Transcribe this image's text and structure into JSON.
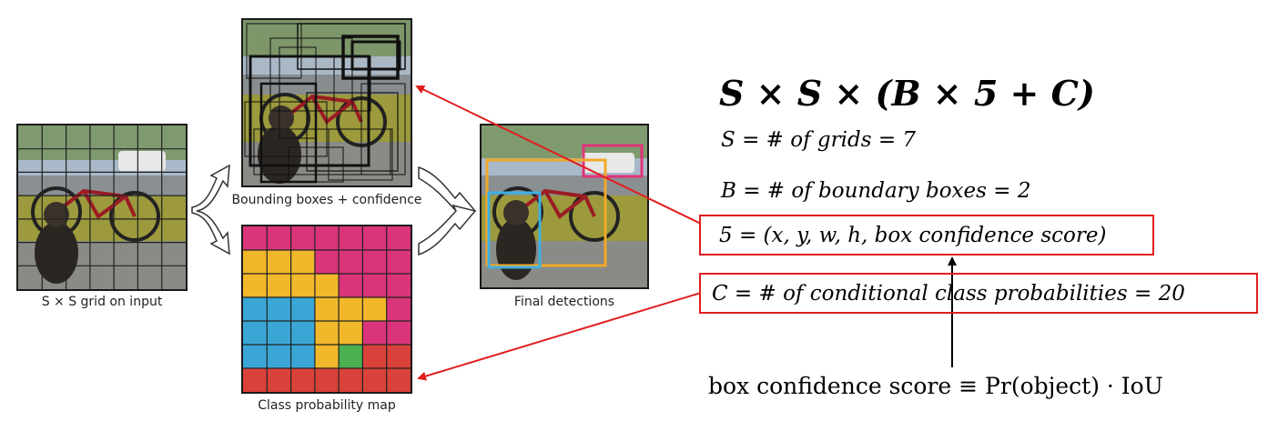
{
  "captions": {
    "grid_input": "S × S grid on input",
    "bboxes": "Bounding boxes + confidence",
    "classmap": "Class probability map",
    "final": "Final detections"
  },
  "equations": {
    "main": "S × S × (B × 5 + C)",
    "s_def": "S = # of grids = 7",
    "b_def": "B = # of boundary boxes = 2",
    "five_def": "5 = (x, y, w, h, box confidence score)",
    "c_def": "C = # of conditional class probabilities = 20",
    "confidence": "box confidence score ≡ Pr(object) · IoU"
  },
  "colors": {
    "highlight_box": "#e01e1e",
    "class_magenta": "#d9357a",
    "class_yellow": "#f0b82a",
    "class_blue": "#3aa6d6",
    "class_green": "#4caf50",
    "class_red": "#d8423a",
    "det_magenta": "#e0337a",
    "det_orange": "#f0a928",
    "det_cyan": "#3fb0e0"
  }
}
